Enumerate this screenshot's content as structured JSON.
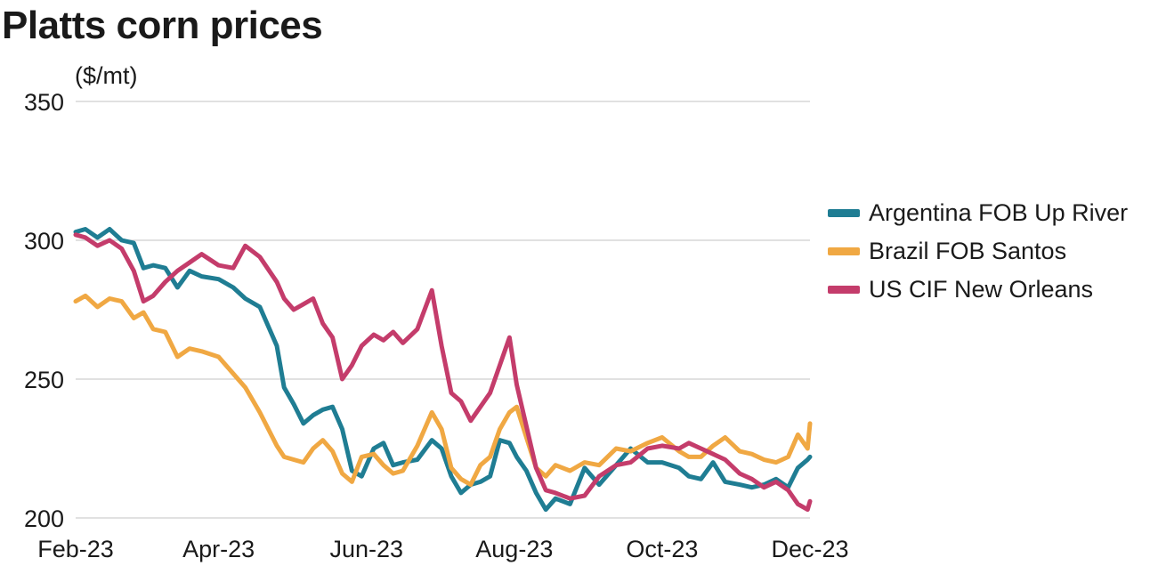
{
  "chart_data": {
    "type": "line",
    "title": "Platts corn prices",
    "ylabel": "($/mt)",
    "ylim": [
      200,
      350
    ],
    "yticks": [
      "200",
      "250",
      "300",
      "350"
    ],
    "xlim": [
      "2023-02-01",
      "2023-12-01"
    ],
    "xticks": [
      {
        "date": "2023-02-01",
        "label": "Feb-23"
      },
      {
        "date": "2023-04-01",
        "label": "Apr-23"
      },
      {
        "date": "2023-06-01",
        "label": "Jun-23"
      },
      {
        "date": "2023-08-01",
        "label": "Aug-23"
      },
      {
        "date": "2023-10-01",
        "label": "Oct-23"
      },
      {
        "date": "2023-12-01",
        "label": "Dec-23"
      }
    ],
    "grid": true,
    "legend_position": "right",
    "series": [
      {
        "name": "Argentina FOB Up River",
        "color": "#1f7d93",
        "x": [
          "2023-02-01",
          "2023-02-05",
          "2023-02-10",
          "2023-02-15",
          "2023-02-20",
          "2023-02-25",
          "2023-03-01",
          "2023-03-05",
          "2023-03-10",
          "2023-03-15",
          "2023-03-20",
          "2023-03-25",
          "2023-04-01",
          "2023-04-07",
          "2023-04-12",
          "2023-04-18",
          "2023-04-25",
          "2023-04-28",
          "2023-05-02",
          "2023-05-06",
          "2023-05-10",
          "2023-05-14",
          "2023-05-18",
          "2023-05-22",
          "2023-05-26",
          "2023-05-30",
          "2023-06-04",
          "2023-06-08",
          "2023-06-12",
          "2023-06-16",
          "2023-06-22",
          "2023-06-28",
          "2023-07-02",
          "2023-07-06",
          "2023-07-10",
          "2023-07-14",
          "2023-07-18",
          "2023-07-22",
          "2023-07-26",
          "2023-07-30",
          "2023-08-02",
          "2023-08-06",
          "2023-08-10",
          "2023-08-14",
          "2023-08-18",
          "2023-08-24",
          "2023-08-30",
          "2023-09-05",
          "2023-09-12",
          "2023-09-18",
          "2023-09-25",
          "2023-10-01",
          "2023-10-08",
          "2023-10-12",
          "2023-10-17",
          "2023-10-22",
          "2023-10-27",
          "2023-11-02",
          "2023-11-07",
          "2023-11-12",
          "2023-11-17",
          "2023-11-22",
          "2023-11-26",
          "2023-11-30",
          "2023-12-01"
        ],
        "y": [
          303,
          304,
          301,
          304,
          300,
          299,
          290,
          291,
          290,
          283,
          289,
          287,
          286,
          283,
          279,
          276,
          262,
          247,
          241,
          234,
          237,
          239,
          240,
          232,
          217,
          215,
          225,
          227,
          219,
          220,
          221,
          228,
          225,
          215,
          209,
          212,
          213,
          215,
          228,
          227,
          222,
          217,
          209,
          203,
          207,
          205,
          218,
          212,
          219,
          225,
          220,
          220,
          218,
          215,
          214,
          220,
          213,
          212,
          211,
          212,
          214,
          211,
          218,
          221,
          222
        ]
      },
      {
        "name": "Brazil FOB Santos",
        "color": "#f0a843",
        "x": [
          "2023-02-01",
          "2023-02-05",
          "2023-02-10",
          "2023-02-15",
          "2023-02-20",
          "2023-02-25",
          "2023-03-01",
          "2023-03-05",
          "2023-03-10",
          "2023-03-15",
          "2023-03-20",
          "2023-03-25",
          "2023-04-01",
          "2023-04-07",
          "2023-04-12",
          "2023-04-18",
          "2023-04-25",
          "2023-04-28",
          "2023-05-02",
          "2023-05-06",
          "2023-05-10",
          "2023-05-14",
          "2023-05-18",
          "2023-05-22",
          "2023-05-26",
          "2023-05-30",
          "2023-06-04",
          "2023-06-08",
          "2023-06-12",
          "2023-06-16",
          "2023-06-22",
          "2023-06-28",
          "2023-07-02",
          "2023-07-06",
          "2023-07-10",
          "2023-07-14",
          "2023-07-18",
          "2023-07-22",
          "2023-07-26",
          "2023-07-30",
          "2023-08-02",
          "2023-08-06",
          "2023-08-10",
          "2023-08-14",
          "2023-08-18",
          "2023-08-24",
          "2023-08-30",
          "2023-09-05",
          "2023-09-12",
          "2023-09-18",
          "2023-09-25",
          "2023-10-01",
          "2023-10-08",
          "2023-10-12",
          "2023-10-17",
          "2023-10-22",
          "2023-10-27",
          "2023-11-02",
          "2023-11-07",
          "2023-11-12",
          "2023-11-17",
          "2023-11-22",
          "2023-11-26",
          "2023-11-30",
          "2023-12-01"
        ],
        "y": [
          278,
          280,
          276,
          279,
          278,
          272,
          274,
          268,
          267,
          258,
          261,
          260,
          258,
          252,
          247,
          238,
          226,
          222,
          221,
          220,
          225,
          228,
          224,
          216,
          213,
          222,
          223,
          219,
          216,
          217,
          226,
          238,
          232,
          218,
          214,
          212,
          219,
          222,
          232,
          238,
          240,
          229,
          218,
          215,
          219,
          217,
          220,
          219,
          225,
          224,
          227,
          229,
          224,
          222,
          222,
          226,
          229,
          224,
          223,
          221,
          220,
          222,
          230,
          225,
          234
        ]
      },
      {
        "name": "US CIF New Orleans",
        "color": "#c43c6b",
        "x": [
          "2023-02-01",
          "2023-02-05",
          "2023-02-10",
          "2023-02-15",
          "2023-02-20",
          "2023-02-25",
          "2023-03-01",
          "2023-03-05",
          "2023-03-10",
          "2023-03-15",
          "2023-03-20",
          "2023-03-25",
          "2023-04-01",
          "2023-04-07",
          "2023-04-12",
          "2023-04-18",
          "2023-04-25",
          "2023-04-28",
          "2023-05-02",
          "2023-05-06",
          "2023-05-10",
          "2023-05-14",
          "2023-05-18",
          "2023-05-22",
          "2023-05-26",
          "2023-05-30",
          "2023-06-04",
          "2023-06-08",
          "2023-06-12",
          "2023-06-16",
          "2023-06-22",
          "2023-06-28",
          "2023-07-02",
          "2023-07-06",
          "2023-07-10",
          "2023-07-14",
          "2023-07-18",
          "2023-07-22",
          "2023-07-26",
          "2023-07-30",
          "2023-08-02",
          "2023-08-06",
          "2023-08-10",
          "2023-08-14",
          "2023-08-18",
          "2023-08-24",
          "2023-08-30",
          "2023-09-05",
          "2023-09-12",
          "2023-09-18",
          "2023-09-25",
          "2023-10-01",
          "2023-10-08",
          "2023-10-12",
          "2023-10-17",
          "2023-10-22",
          "2023-10-27",
          "2023-11-02",
          "2023-11-07",
          "2023-11-12",
          "2023-11-17",
          "2023-11-22",
          "2023-11-26",
          "2023-11-30",
          "2023-12-01"
        ],
        "y": [
          302,
          301,
          298,
          300,
          297,
          289,
          278,
          280,
          285,
          289,
          292,
          295,
          291,
          290,
          298,
          294,
          285,
          279,
          275,
          277,
          279,
          270,
          265,
          250,
          255,
          262,
          266,
          264,
          267,
          263,
          268,
          282,
          262,
          245,
          242,
          235,
          240,
          245,
          255,
          265,
          248,
          233,
          218,
          210,
          209,
          207,
          208,
          215,
          219,
          220,
          225,
          226,
          225,
          227,
          225,
          223,
          221,
          216,
          214,
          211,
          213,
          210,
          205,
          203,
          206
        ]
      }
    ]
  }
}
